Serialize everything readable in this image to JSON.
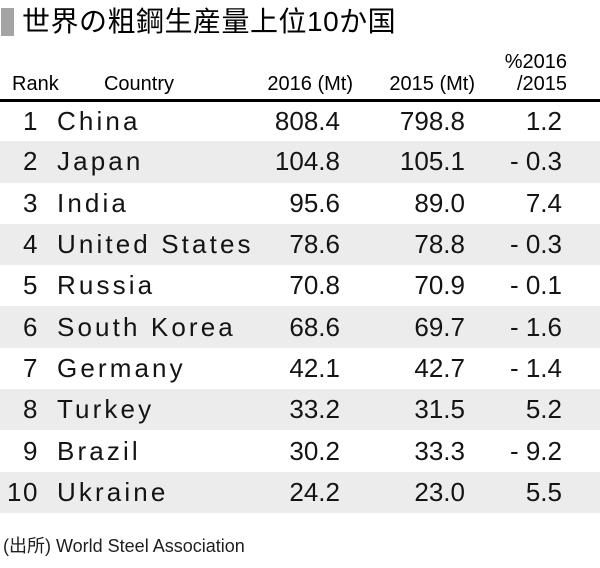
{
  "title": {
    "text": "世界の粗鋼生産量上位10か国"
  },
  "table": {
    "headers": {
      "rank": "Rank",
      "country": "Country",
      "y2016": "2016 (Mt)",
      "y2015": "2015 (Mt)",
      "pct_line1": "%2016",
      "pct_line2": "/2015"
    },
    "rows": [
      {
        "rank": "1",
        "country": "China",
        "y2016": "808.4",
        "y2015": "798.8",
        "pct": "1.2"
      },
      {
        "rank": "2",
        "country": "Japan",
        "y2016": "104.8",
        "y2015": "105.1",
        "pct": "- 0.3"
      },
      {
        "rank": "3",
        "country": "India",
        "y2016": "95.6",
        "y2015": "89.0",
        "pct": "7.4"
      },
      {
        "rank": "4",
        "country": "United States",
        "y2016": "78.6",
        "y2015": "78.8",
        "pct": "- 0.3"
      },
      {
        "rank": "5",
        "country": "Russia",
        "y2016": "70.8",
        "y2015": "70.9",
        "pct": "- 0.1"
      },
      {
        "rank": "6",
        "country": "South Korea",
        "y2016": "68.6",
        "y2015": "69.7",
        "pct": "- 1.6"
      },
      {
        "rank": "7",
        "country": "Germany",
        "y2016": "42.1",
        "y2015": "42.7",
        "pct": "- 1.4"
      },
      {
        "rank": "8",
        "country": "Turkey",
        "y2016": "33.2",
        "y2015": "31.5",
        "pct": "5.2"
      },
      {
        "rank": "9",
        "country": "Brazil",
        "y2016": "30.2",
        "y2015": "33.3",
        "pct": "- 9.2"
      },
      {
        "rank": "10",
        "country": "Ukraine",
        "y2016": "24.2",
        "y2015": "23.0",
        "pct": "5.5"
      }
    ]
  },
  "footer": {
    "source": "(出所) World Steel Association"
  },
  "colors": {
    "row_alt": "#ececec",
    "accent_square": "#a4a4a4",
    "header_rule": "#000000",
    "text": "#141414"
  },
  "chart_data": {
    "type": "table",
    "title": "世界の粗鋼生産量上位10か国",
    "columns": [
      "Rank",
      "Country",
      "2016 (Mt)",
      "2015 (Mt)",
      "%2016/2015"
    ],
    "rows": [
      [
        1,
        "China",
        808.4,
        798.8,
        1.2
      ],
      [
        2,
        "Japan",
        104.8,
        105.1,
        -0.3
      ],
      [
        3,
        "India",
        95.6,
        89.0,
        7.4
      ],
      [
        4,
        "United States",
        78.6,
        78.8,
        -0.3
      ],
      [
        5,
        "Russia",
        70.8,
        70.9,
        -0.1
      ],
      [
        6,
        "South Korea",
        68.6,
        69.7,
        -1.6
      ],
      [
        7,
        "Germany",
        42.1,
        42.7,
        -1.4
      ],
      [
        8,
        "Turkey",
        33.2,
        31.5,
        5.2
      ],
      [
        9,
        "Brazil",
        30.2,
        33.3,
        -9.2
      ],
      [
        10,
        "Ukraine",
        24.2,
        23.0,
        5.5
      ]
    ],
    "source": "(出所) World Steel Association",
    "layout": {
      "striped_rows": true,
      "stripe_color": "#ececec",
      "header_rule": "3px solid black"
    }
  }
}
